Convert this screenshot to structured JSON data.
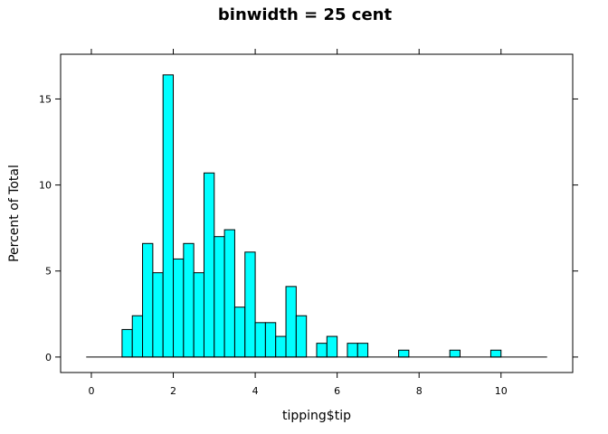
{
  "chart_data": {
    "type": "bar",
    "title": "binwidth = 25 cent",
    "xlabel": "tipping$tip",
    "ylabel": "Percent of Total",
    "xlim": [
      -0.75,
      11.75
    ],
    "ylim": [
      -0.9,
      17.6
    ],
    "bin_width": 0.25,
    "bin_start": -0.125,
    "bin_end": 11.125,
    "bar_color": "#00ffff",
    "x_ticks": [
      0,
      2,
      4,
      6,
      8,
      10
    ],
    "y_ticks": [
      0,
      5,
      10,
      15
    ],
    "bins": [
      {
        "x": 0.875,
        "value": 1.6
      },
      {
        "x": 1.125,
        "value": 2.4
      },
      {
        "x": 1.375,
        "value": 6.6
      },
      {
        "x": 1.625,
        "value": 4.9
      },
      {
        "x": 1.875,
        "value": 16.4
      },
      {
        "x": 2.125,
        "value": 5.7
      },
      {
        "x": 2.375,
        "value": 6.6
      },
      {
        "x": 2.625,
        "value": 4.9
      },
      {
        "x": 2.875,
        "value": 10.7
      },
      {
        "x": 3.125,
        "value": 7.0
      },
      {
        "x": 3.375,
        "value": 7.4
      },
      {
        "x": 3.625,
        "value": 2.9
      },
      {
        "x": 3.875,
        "value": 6.1
      },
      {
        "x": 4.125,
        "value": 2.0
      },
      {
        "x": 4.375,
        "value": 2.0
      },
      {
        "x": 4.625,
        "value": 1.2
      },
      {
        "x": 4.875,
        "value": 4.1
      },
      {
        "x": 5.125,
        "value": 2.4
      },
      {
        "x": 5.625,
        "value": 0.8
      },
      {
        "x": 5.875,
        "value": 1.2
      },
      {
        "x": 6.375,
        "value": 0.8
      },
      {
        "x": 6.625,
        "value": 0.8
      },
      {
        "x": 7.625,
        "value": 0.4
      },
      {
        "x": 8.875,
        "value": 0.4
      },
      {
        "x": 9.875,
        "value": 0.4
      }
    ]
  }
}
